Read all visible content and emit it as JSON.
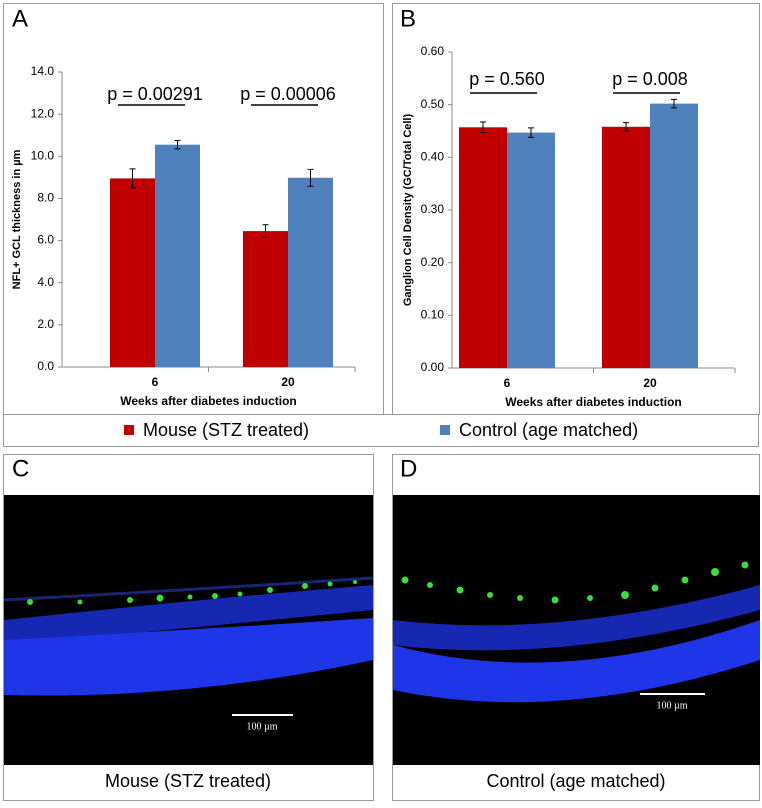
{
  "chart_data": [
    {
      "type": "bar",
      "panel": "A",
      "x_label": "Weeks after diabetes induction",
      "y_label": "NFL+ GCL thickness in µm",
      "categories": [
        "6",
        "20"
      ],
      "series": [
        {
          "name": "Mouse (STZ treated)",
          "color": "#c00000",
          "values": [
            8.95,
            6.45
          ],
          "errors": [
            0.45,
            0.3
          ]
        },
        {
          "name": "Control (age matched)",
          "color": "#4f81bd",
          "values": [
            10.55,
            8.98
          ],
          "errors": [
            0.2,
            0.4
          ]
        }
      ],
      "annotations": [
        "p = 0.00291",
        "p = 0.00006"
      ],
      "ylim": [
        0,
        14
      ],
      "yticks": [
        {
          "value": 0,
          "label": "0.0"
        },
        {
          "value": 2,
          "label": "2.0"
        },
        {
          "value": 4,
          "label": "4.0"
        },
        {
          "value": 6,
          "label": "6.0"
        },
        {
          "value": 8,
          "label": "8.0"
        },
        {
          "value": 10,
          "label": "10.0"
        },
        {
          "value": 12,
          "label": "12.0"
        },
        {
          "value": 14,
          "label": "14.0"
        }
      ]
    },
    {
      "type": "bar",
      "panel": "B",
      "x_label": "Weeks after diabetes induction",
      "y_label": "Ganglion Cell Density (GC/Total Cell)",
      "categories": [
        "6",
        "20"
      ],
      "series": [
        {
          "color": "#c00000",
          "values": [
            0.457,
            0.458
          ],
          "errors": [
            0.01,
            0.008
          ]
        },
        {
          "color": "#4f81bd",
          "values": [
            0.447,
            0.502
          ],
          "errors": [
            0.009,
            0.008
          ]
        }
      ],
      "annotations": [
        "p = 0.560",
        "p = 0.008"
      ],
      "ylim": [
        0,
        0.6
      ],
      "yticks": [
        {
          "value": 0,
          "label": "0.00"
        },
        {
          "value": 0.1,
          "label": "0.10"
        },
        {
          "value": 0.2,
          "label": "0.20"
        },
        {
          "value": 0.3,
          "label": "0.30"
        },
        {
          "value": 0.4,
          "label": "0.40"
        },
        {
          "value": 0.5,
          "label": "0.50"
        },
        {
          "value": 0.6,
          "label": "0.60"
        }
      ]
    }
  ],
  "images": [
    {
      "panel": "C",
      "scale_bar": "100 µm",
      "caption": "Mouse (STZ treated)"
    },
    {
      "panel": "D",
      "scale_bar": "100 µm",
      "caption": "Control (age matched)"
    }
  ]
}
